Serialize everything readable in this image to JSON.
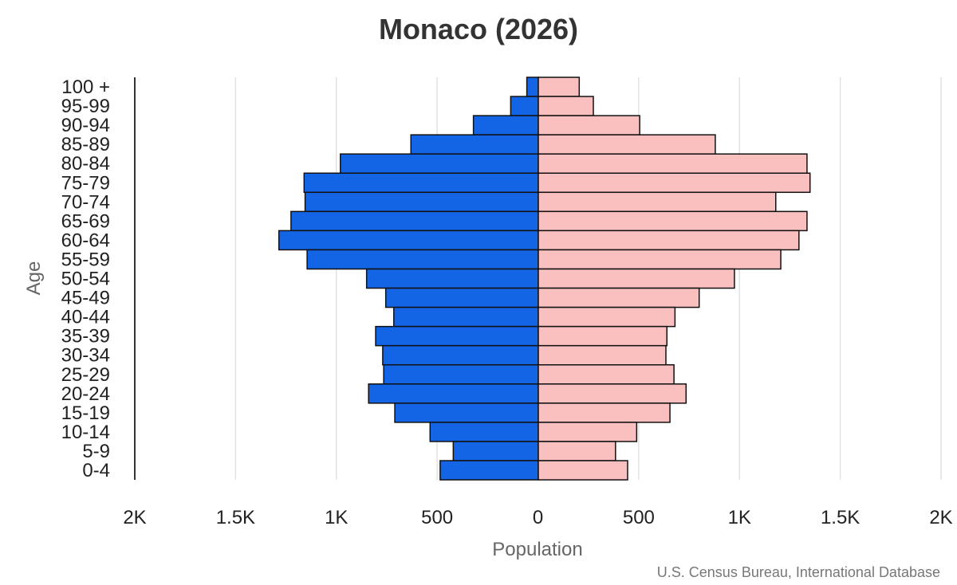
{
  "chart_data": {
    "type": "bar",
    "orientation": "horizontal",
    "variant": "population-pyramid",
    "title": "Monaco (2026)",
    "xlabel": "Population",
    "ylabel": "Age",
    "source": "U.S. Census Bureau, International Database",
    "xlim": [
      -2000,
      2000
    ],
    "x_ticks": [
      -2000,
      -1500,
      -1000,
      -500,
      0,
      500,
      1000,
      1500,
      2000
    ],
    "x_tick_labels": [
      "2K",
      "1.5K",
      "1K",
      "500",
      "0",
      "500",
      "1K",
      "1.5K",
      "2K"
    ],
    "grid": true,
    "categories": [
      "100 +",
      "95-99",
      "90-94",
      "85-89",
      "80-84",
      "75-79",
      "70-74",
      "65-69",
      "60-64",
      "55-59",
      "50-54",
      "45-49",
      "40-44",
      "35-39",
      "30-34",
      "25-29",
      "20-24",
      "15-19",
      "10-14",
      "5-9",
      "0-4"
    ],
    "series": [
      {
        "side": "left",
        "color": "#1464e6",
        "values": [
          55,
          135,
          320,
          630,
          980,
          1160,
          1155,
          1225,
          1285,
          1145,
          850,
          755,
          715,
          805,
          770,
          765,
          840,
          710,
          535,
          420,
          485
        ]
      },
      {
        "side": "right",
        "color": "#fac0c0",
        "values": [
          205,
          275,
          505,
          880,
          1335,
          1350,
          1180,
          1335,
          1295,
          1205,
          975,
          800,
          680,
          640,
          635,
          675,
          735,
          655,
          490,
          385,
          445
        ]
      }
    ]
  }
}
